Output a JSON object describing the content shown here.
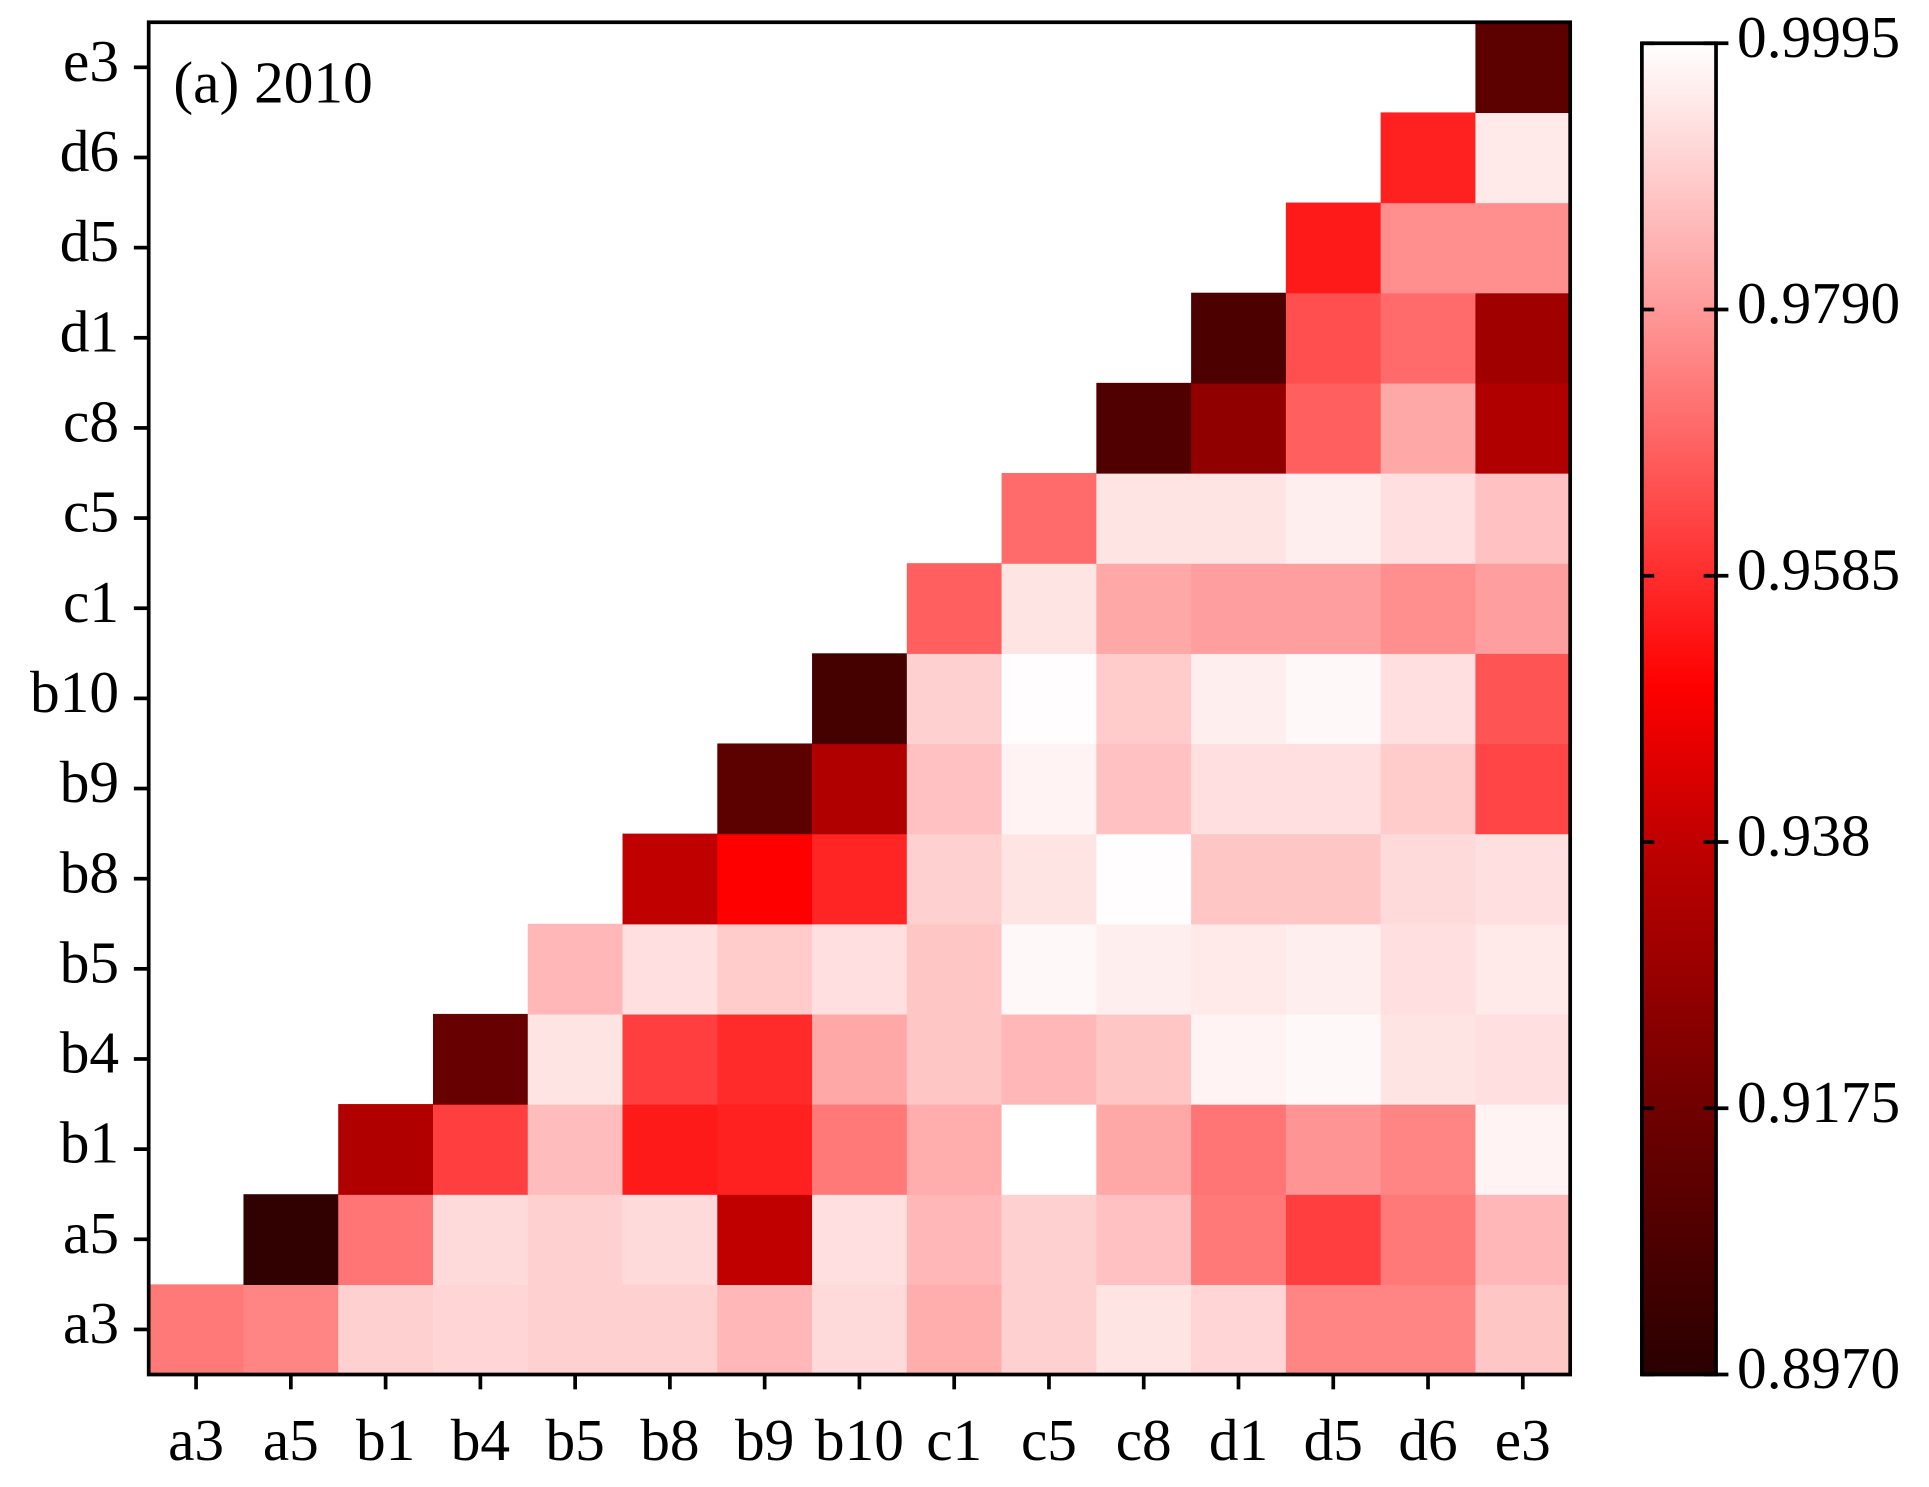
{
  "chart_data": {
    "type": "heatmap",
    "annotation": "(a) 2010",
    "x": [
      "a3",
      "a5",
      "b1",
      "b4",
      "b5",
      "b8",
      "b9",
      "b10",
      "c1",
      "c5",
      "c8",
      "d1",
      "d5",
      "d6",
      "e3"
    ],
    "y": [
      "a3",
      "a5",
      "b1",
      "b4",
      "b5",
      "b8",
      "b9",
      "b10",
      "c1",
      "c5",
      "c8",
      "d1",
      "d5",
      "d6",
      "e3"
    ],
    "z": [
      [
        0.973,
        0.975,
        0.99,
        0.991,
        0.99,
        0.99,
        0.985,
        0.992,
        0.983,
        0.99,
        0.994,
        0.991,
        0.975,
        0.975,
        0.988
      ],
      [
        null,
        0.899,
        0.972,
        0.992,
        0.99,
        0.992,
        0.938,
        0.993,
        0.985,
        0.99,
        0.987,
        0.973,
        0.962,
        0.973,
        0.985
      ],
      [
        null,
        null,
        0.934,
        0.962,
        0.986,
        0.955,
        0.956,
        0.973,
        0.983,
        0.9995,
        0.982,
        0.972,
        0.978,
        0.975,
        0.997
      ],
      [
        null,
        null,
        null,
        0.915,
        0.994,
        0.962,
        0.958,
        0.982,
        0.988,
        0.985,
        0.988,
        0.997,
        0.998,
        0.994,
        0.993
      ],
      [
        null,
        null,
        null,
        null,
        0.985,
        0.993,
        0.989,
        0.993,
        0.988,
        0.998,
        0.996,
        0.995,
        0.996,
        0.993,
        0.995
      ],
      [
        null,
        null,
        null,
        null,
        null,
        0.938,
        0.95,
        0.957,
        0.99,
        0.994,
        0.999,
        0.988,
        0.988,
        0.992,
        0.993
      ],
      [
        null,
        null,
        null,
        null,
        null,
        null,
        0.912,
        0.934,
        0.987,
        0.997,
        0.987,
        0.993,
        0.993,
        0.989,
        0.963
      ],
      [
        null,
        null,
        null,
        null,
        null,
        null,
        null,
        0.905,
        0.99,
        0.999,
        0.989,
        0.996,
        0.998,
        0.993,
        0.966
      ],
      [
        null,
        null,
        null,
        null,
        null,
        null,
        null,
        null,
        0.968,
        0.994,
        0.982,
        0.98,
        0.98,
        0.977,
        0.98
      ],
      [
        null,
        null,
        null,
        null,
        null,
        null,
        null,
        null,
        null,
        0.97,
        0.994,
        0.994,
        0.996,
        0.993,
        0.987
      ],
      [
        null,
        null,
        null,
        null,
        null,
        null,
        null,
        null,
        null,
        null,
        0.908,
        0.926,
        0.968,
        0.982,
        0.934
      ],
      [
        null,
        null,
        null,
        null,
        null,
        null,
        null,
        null,
        null,
        null,
        null,
        0.907,
        0.965,
        0.97,
        0.93
      ],
      [
        null,
        null,
        null,
        null,
        null,
        null,
        null,
        null,
        null,
        null,
        null,
        null,
        0.955,
        0.977,
        0.977
      ],
      [
        null,
        null,
        null,
        null,
        null,
        null,
        null,
        null,
        null,
        null,
        null,
        null,
        null,
        0.956,
        0.995
      ],
      [
        null,
        null,
        null,
        null,
        null,
        null,
        null,
        null,
        null,
        null,
        null,
        null,
        null,
        null,
        0.912
      ]
    ],
    "zlim": [
      0.897,
      0.9995
    ],
    "zticks": [
      {
        "value": 0.897,
        "label": "0.8970"
      },
      0.9175,
      0.938,
      "0.9380",
      0.9585,
      {
        "value": 0.979,
        "label": "0.9790"
      },
      0.9995
    ],
    "colorscale": [
      [
        0.897,
        "#2a0000"
      ],
      [
        0.9175,
        "#700000"
      ],
      [
        0.938,
        "#c00000"
      ],
      [
        0.95,
        "#ff0000"
      ],
      [
        0.979,
        "#ff9999"
      ],
      [
        0.9995,
        "#ffffff"
      ]
    ]
  }
}
